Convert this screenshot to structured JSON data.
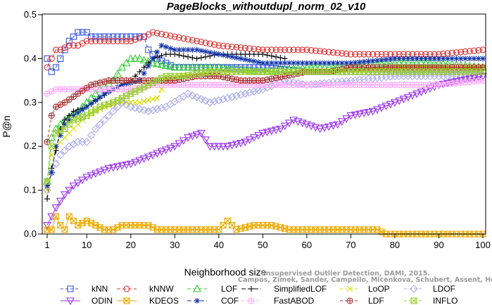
{
  "chart_data": {
    "type": "line",
    "title": "PageBlocks_withoutdupl_norm_02_v10",
    "xlabel": "Neighborhood size",
    "ylabel": "P@n",
    "xlim": [
      1,
      100
    ],
    "ylim": [
      0,
      0.5
    ],
    "x_ticks": [
      1,
      10,
      20,
      30,
      40,
      50,
      60,
      70,
      80,
      90,
      100
    ],
    "y_ticks": [
      0.0,
      0.1,
      0.2,
      0.3,
      0.4,
      0.5
    ],
    "grid": false,
    "legend_position": "bottom",
    "series": [
      {
        "name": "kNN",
        "color": "#3355dd",
        "marker": "square",
        "dash": "4,3",
        "points": [
          [
            1,
            0.4
          ],
          [
            2,
            0.37
          ],
          [
            3,
            0.38
          ],
          [
            4,
            0.4
          ],
          [
            5,
            0.42
          ],
          [
            6,
            0.44
          ],
          [
            7,
            0.45
          ],
          [
            8,
            0.46
          ],
          [
            9,
            0.46
          ],
          [
            10,
            0.46
          ],
          [
            11,
            0.45
          ],
          [
            15,
            0.45
          ],
          [
            20,
            0.45
          ],
          [
            23,
            0.45
          ],
          [
            24,
            0.42
          ],
          [
            26,
            0.4
          ],
          [
            30,
            0.38
          ],
          [
            40,
            0.38
          ],
          [
            50,
            0.38
          ],
          [
            60,
            0.37
          ],
          [
            70,
            0.37
          ],
          [
            80,
            0.37
          ],
          [
            90,
            0.37
          ],
          [
            100,
            0.37
          ]
        ]
      },
      {
        "name": "kNNW",
        "color": "#dd3333",
        "marker": "circle",
        "dash": "5,3",
        "points": [
          [
            1,
            0.38
          ],
          [
            2,
            0.4
          ],
          [
            3,
            0.42
          ],
          [
            4,
            0.42
          ],
          [
            6,
            0.43
          ],
          [
            8,
            0.43
          ],
          [
            10,
            0.44
          ],
          [
            15,
            0.44
          ],
          [
            20,
            0.44
          ],
          [
            23,
            0.45
          ],
          [
            25,
            0.46
          ],
          [
            30,
            0.45
          ],
          [
            35,
            0.44
          ],
          [
            40,
            0.43
          ],
          [
            50,
            0.42
          ],
          [
            60,
            0.42
          ],
          [
            70,
            0.41
          ],
          [
            80,
            0.41
          ],
          [
            90,
            0.41
          ],
          [
            100,
            0.42
          ]
        ]
      },
      {
        "name": "LOF",
        "color": "#33cc33",
        "marker": "triangle",
        "dash": "5,3",
        "points": [
          [
            1,
            0.12
          ],
          [
            2,
            0.22
          ],
          [
            3,
            0.24
          ],
          [
            5,
            0.26
          ],
          [
            8,
            0.28
          ],
          [
            10,
            0.3
          ],
          [
            13,
            0.33
          ],
          [
            16,
            0.35
          ],
          [
            18,
            0.38
          ],
          [
            20,
            0.4
          ],
          [
            22,
            0.4
          ],
          [
            25,
            0.39
          ],
          [
            30,
            0.38
          ],
          [
            40,
            0.38
          ],
          [
            50,
            0.37
          ],
          [
            60,
            0.38
          ],
          [
            70,
            0.38
          ],
          [
            80,
            0.39
          ],
          [
            90,
            0.39
          ],
          [
            100,
            0.38
          ]
        ]
      },
      {
        "name": "SimplifiedLOF",
        "color": "#000000",
        "marker": "plus",
        "dash": "6,3",
        "points": [
          [
            1,
            0.08
          ],
          [
            2,
            0.15
          ],
          [
            3,
            0.19
          ],
          [
            4,
            0.24
          ],
          [
            5,
            0.26
          ],
          [
            7,
            0.28
          ],
          [
            10,
            0.29
          ],
          [
            13,
            0.31
          ],
          [
            16,
            0.33
          ],
          [
            20,
            0.35
          ],
          [
            23,
            0.38
          ],
          [
            25,
            0.4
          ],
          [
            28,
            0.41
          ],
          [
            30,
            0.41
          ],
          [
            35,
            0.4
          ],
          [
            40,
            0.41
          ],
          [
            45,
            0.41
          ],
          [
            50,
            0.41
          ],
          [
            55,
            0.4
          ]
        ]
      },
      {
        "name": "LoOP",
        "color": "#dddd00",
        "marker": "x",
        "dash": "4,3",
        "points": [
          [
            1,
            0.1
          ],
          [
            2,
            0.18
          ],
          [
            3,
            0.2
          ],
          [
            5,
            0.22
          ],
          [
            8,
            0.25
          ],
          [
            10,
            0.27
          ],
          [
            14,
            0.29
          ],
          [
            18,
            0.3
          ],
          [
            22,
            0.3
          ],
          [
            26,
            0.31
          ],
          [
            28,
            0.35
          ],
          [
            30,
            0.36
          ],
          [
            40,
            0.37
          ],
          [
            50,
            0.37
          ],
          [
            60,
            0.37
          ],
          [
            70,
            0.37
          ],
          [
            80,
            0.38
          ],
          [
            90,
            0.38
          ],
          [
            100,
            0.38
          ]
        ]
      },
      {
        "name": "LDOF",
        "color": "#aaaaee",
        "marker": "diamond",
        "dash": "4,3",
        "points": [
          [
            1,
            0.1
          ],
          [
            2,
            0.14
          ],
          [
            4,
            0.18
          ],
          [
            6,
            0.2
          ],
          [
            8,
            0.21
          ],
          [
            10,
            0.21
          ],
          [
            12,
            0.24
          ],
          [
            15,
            0.27
          ],
          [
            18,
            0.3
          ],
          [
            20,
            0.29
          ],
          [
            24,
            0.28
          ],
          [
            28,
            0.29
          ],
          [
            33,
            0.32
          ],
          [
            38,
            0.3
          ],
          [
            42,
            0.31
          ],
          [
            46,
            0.32
          ],
          [
            50,
            0.33
          ],
          [
            55,
            0.35
          ],
          [
            60,
            0.34
          ],
          [
            70,
            0.35
          ],
          [
            80,
            0.36
          ],
          [
            90,
            0.36
          ],
          [
            100,
            0.36
          ]
        ]
      },
      {
        "name": "ODIN",
        "color": "#9933ee",
        "marker": "triangle-down",
        "dash": "",
        "points": [
          [
            1,
            0.02
          ],
          [
            3,
            0.06
          ],
          [
            5,
            0.09
          ],
          [
            7,
            0.11
          ],
          [
            10,
            0.13
          ],
          [
            15,
            0.15
          ],
          [
            20,
            0.16
          ],
          [
            25,
            0.18
          ],
          [
            30,
            0.2
          ],
          [
            33,
            0.22
          ],
          [
            36,
            0.23
          ],
          [
            38,
            0.2
          ],
          [
            42,
            0.2
          ],
          [
            46,
            0.21
          ],
          [
            50,
            0.23
          ],
          [
            54,
            0.24
          ],
          [
            57,
            0.26
          ],
          [
            60,
            0.25
          ],
          [
            63,
            0.24
          ],
          [
            67,
            0.25
          ],
          [
            70,
            0.27
          ],
          [
            75,
            0.28
          ],
          [
            80,
            0.3
          ],
          [
            85,
            0.32
          ],
          [
            90,
            0.34
          ],
          [
            95,
            0.35
          ],
          [
            100,
            0.36
          ]
        ]
      },
      {
        "name": "KDEOS",
        "color": "#eeaa00",
        "marker": "square-x",
        "dash": "",
        "points": [
          [
            1,
            0.01
          ],
          [
            2,
            0.01
          ],
          [
            3,
            0.04
          ],
          [
            4,
            0.02
          ],
          [
            5,
            0.01
          ],
          [
            6,
            0.04
          ],
          [
            8,
            0.02
          ],
          [
            10,
            0.03
          ],
          [
            12,
            0.02
          ],
          [
            14,
            0.01
          ],
          [
            16,
            0.01
          ],
          [
            18,
            0.02
          ],
          [
            20,
            0.02
          ],
          [
            24,
            0.02
          ],
          [
            26,
            0.01
          ],
          [
            30,
            0.01
          ],
          [
            38,
            0.01
          ],
          [
            40,
            0.01
          ],
          [
            42,
            0.03
          ],
          [
            44,
            0.01
          ],
          [
            48,
            0.02
          ],
          [
            52,
            0.02
          ],
          [
            56,
            0.01
          ],
          [
            60,
            0.01
          ],
          [
            70,
            0.01
          ],
          [
            76,
            0.01
          ],
          [
            78,
            0.0
          ],
          [
            90,
            0.0
          ],
          [
            100,
            0.0
          ]
        ]
      },
      {
        "name": "COF",
        "color": "#1133aa",
        "marker": "asterisk",
        "dash": "6,3",
        "points": [
          [
            1,
            0.11
          ],
          [
            2,
            0.14
          ],
          [
            3,
            0.2
          ],
          [
            5,
            0.25
          ],
          [
            7,
            0.27
          ],
          [
            10,
            0.29
          ],
          [
            14,
            0.32
          ],
          [
            18,
            0.34
          ],
          [
            22,
            0.35
          ],
          [
            25,
            0.4
          ],
          [
            27,
            0.43
          ],
          [
            30,
            0.42
          ],
          [
            35,
            0.42
          ],
          [
            40,
            0.41
          ],
          [
            45,
            0.4
          ],
          [
            50,
            0.39
          ],
          [
            60,
            0.39
          ],
          [
            70,
            0.39
          ],
          [
            80,
            0.4
          ],
          [
            90,
            0.4
          ],
          [
            100,
            0.4
          ]
        ]
      },
      {
        "name": "FastABOD",
        "color": "#ffaaff",
        "marker": "circle-plus",
        "dash": "4,3",
        "points": [
          [
            1,
            0.32
          ],
          [
            3,
            0.33
          ],
          [
            6,
            0.33
          ],
          [
            10,
            0.33
          ],
          [
            15,
            0.33
          ],
          [
            20,
            0.33
          ],
          [
            25,
            0.34
          ],
          [
            30,
            0.34
          ],
          [
            40,
            0.34
          ],
          [
            50,
            0.34
          ],
          [
            60,
            0.34
          ],
          [
            70,
            0.34
          ],
          [
            80,
            0.34
          ],
          [
            90,
            0.34
          ],
          [
            100,
            0.35
          ]
        ]
      },
      {
        "name": "LDF",
        "color": "#aa3333",
        "marker": "circle-plus",
        "dash": "4,3",
        "points": [
          [
            1,
            0.21
          ],
          [
            2,
            0.27
          ],
          [
            3,
            0.29
          ],
          [
            5,
            0.3
          ],
          [
            8,
            0.32
          ],
          [
            11,
            0.34
          ],
          [
            15,
            0.35
          ],
          [
            20,
            0.35
          ],
          [
            25,
            0.35
          ],
          [
            30,
            0.35
          ],
          [
            35,
            0.36
          ],
          [
            40,
            0.36
          ],
          [
            45,
            0.35
          ],
          [
            50,
            0.35
          ],
          [
            55,
            0.36
          ],
          [
            60,
            0.37
          ],
          [
            65,
            0.37
          ],
          [
            70,
            0.38
          ],
          [
            75,
            0.38
          ],
          [
            80,
            0.38
          ],
          [
            90,
            0.38
          ],
          [
            100,
            0.38
          ]
        ]
      },
      {
        "name": "INFLO",
        "color": "#99cc33",
        "marker": "square-x",
        "dash": "4,3",
        "points": [
          [
            1,
            0.12
          ],
          [
            2,
            0.2
          ],
          [
            3,
            0.23
          ],
          [
            5,
            0.24
          ],
          [
            7,
            0.26
          ],
          [
            10,
            0.27
          ],
          [
            13,
            0.29
          ],
          [
            16,
            0.3
          ],
          [
            20,
            0.32
          ],
          [
            24,
            0.34
          ],
          [
            28,
            0.36
          ],
          [
            32,
            0.36
          ],
          [
            38,
            0.37
          ],
          [
            45,
            0.37
          ],
          [
            50,
            0.37
          ],
          [
            60,
            0.37
          ],
          [
            70,
            0.37
          ],
          [
            80,
            0.37
          ],
          [
            90,
            0.37
          ],
          [
            100,
            0.37
          ]
        ]
      }
    ]
  },
  "watermark": {
    "line1": "Unsupervised Outlier Detection, DAMI, 2015.",
    "line2": "Campos, Zimek, Sander, Campello, Micenkova, Schubert, Assent, Houle"
  }
}
